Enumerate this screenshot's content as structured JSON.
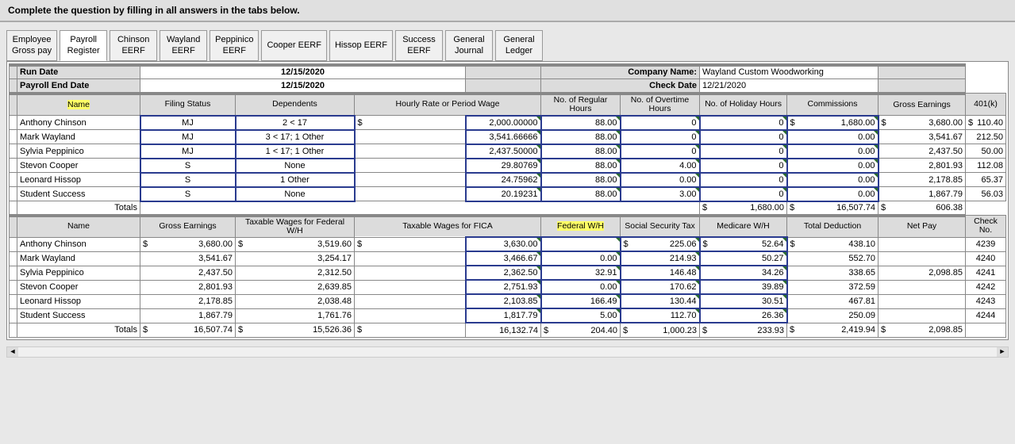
{
  "instruction": "Complete the question by filling in all answers in the tabs below.",
  "tabs": [
    {
      "label": "Employee\nGross pay",
      "active": false
    },
    {
      "label": "Payroll\nRegister",
      "active": true
    },
    {
      "label": "Chinson\nEERF",
      "active": false
    },
    {
      "label": "Wayland\nEERF",
      "active": false
    },
    {
      "label": "Peppinico\nEERF",
      "active": false
    },
    {
      "label": "Cooper EERF",
      "active": false
    },
    {
      "label": "Hissop EERF",
      "active": false
    },
    {
      "label": "Success\nEERF",
      "active": false
    },
    {
      "label": "General\nJournal",
      "active": false
    },
    {
      "label": "General\nLedger",
      "active": false
    }
  ],
  "meta": {
    "run_date_label": "Run Date",
    "run_date": "12/15/2020",
    "payroll_end_label": "Payroll End Date",
    "payroll_end": "12/15/2020",
    "company_label": "Company Name:",
    "company": "Wayland Custom Woodworking",
    "check_date_label": "Check Date",
    "check_date": "12/21/2020"
  },
  "table1": {
    "headers": [
      "Name",
      "Filing Status",
      "Dependents",
      "Hourly Rate or Period Wage",
      "No. of Regular Hours",
      "No. of Overtime Hours",
      "No. of Holiday Hours",
      "Commissions",
      "Gross Earnings",
      "401(k)"
    ],
    "rows": [
      {
        "name": "Anthony Chinson",
        "filing": "MJ",
        "dep": "2 < 17",
        "wage_sym": "$",
        "wage": "2,000.00000",
        "reg": "88.00",
        "ot": "0",
        "hol": "0",
        "comm_sym": "$",
        "comm": "1,680.00",
        "ge_sym": "$",
        "ge": "3,680.00",
        "k_sym": "$",
        "k": "110.40"
      },
      {
        "name": "Mark Wayland",
        "filing": "MJ",
        "dep": "3 < 17; 1 Other",
        "wage_sym": "",
        "wage": "3,541.66666",
        "reg": "88.00",
        "ot": "0",
        "hol": "0",
        "comm_sym": "",
        "comm": "0.00",
        "ge_sym": "",
        "ge": "3,541.67",
        "k_sym": "",
        "k": "212.50"
      },
      {
        "name": "Sylvia Peppinico",
        "filing": "MJ",
        "dep": "1 < 17; 1 Other",
        "wage_sym": "",
        "wage": "2,437.50000",
        "reg": "88.00",
        "ot": "0",
        "hol": "0",
        "comm_sym": "",
        "comm": "0.00",
        "ge_sym": "",
        "ge": "2,437.50",
        "k_sym": "",
        "k": "50.00"
      },
      {
        "name": "Stevon Cooper",
        "filing": "S",
        "dep": "None",
        "wage_sym": "",
        "wage": "29.80769",
        "reg": "88.00",
        "ot": "4.00",
        "hol": "0",
        "comm_sym": "",
        "comm": "0.00",
        "ge_sym": "",
        "ge": "2,801.93",
        "k_sym": "",
        "k": "112.08"
      },
      {
        "name": "Leonard Hissop",
        "filing": "S",
        "dep": "1 Other",
        "wage_sym": "",
        "wage": "24.75962",
        "reg": "88.00",
        "ot": "0.00",
        "hol": "0",
        "comm_sym": "",
        "comm": "0.00",
        "ge_sym": "",
        "ge": "2,178.85",
        "k_sym": "",
        "k": "65.37"
      },
      {
        "name": "Student Success",
        "filing": "S",
        "dep": "None",
        "wage_sym": "",
        "wage": "20.19231",
        "reg": "88.00",
        "ot": "3.00",
        "hol": "0",
        "comm_sym": "",
        "comm": "0.00",
        "ge_sym": "",
        "ge": "1,867.79",
        "k_sym": "",
        "k": "56.03"
      }
    ],
    "totals_label": "Totals",
    "totals": {
      "comm_sym": "$",
      "comm": "1,680.00",
      "ge_sym": "$",
      "ge": "16,507.74",
      "k_sym": "$",
      "k": "606.38"
    }
  },
  "table2": {
    "headers": [
      "Name",
      "Gross Earnings",
      "Taxable Wages for Federal W/H",
      "Taxable Wages for FICA",
      "Federal W/H",
      "Social Security Tax",
      "Medicare W/H",
      "Total Deduction",
      "Net Pay",
      "Check No."
    ],
    "rows": [
      {
        "name": "Anthony Chinson",
        "ge_sym": "$",
        "ge": "3,680.00",
        "tw_sym": "$",
        "tw": "3,519.60",
        "fica_sym": "$",
        "fica": "3,630.00",
        "fwh": "",
        "ss_sym": "$",
        "ss": "225.06",
        "med_sym": "$",
        "med": "52.64",
        "td_sym": "$",
        "td": "438.10",
        "np": "",
        "chk": "4239"
      },
      {
        "name": "Mark Wayland",
        "ge_sym": "",
        "ge": "3,541.67",
        "tw_sym": "",
        "tw": "3,254.17",
        "fica_sym": "",
        "fica": "3,466.67",
        "fwh": "0.00",
        "ss_sym": "",
        "ss": "214.93",
        "med_sym": "",
        "med": "50.27",
        "td_sym": "",
        "td": "552.70",
        "np": "",
        "chk": "4240"
      },
      {
        "name": "Sylvia Peppinico",
        "ge_sym": "",
        "ge": "2,437.50",
        "tw_sym": "",
        "tw": "2,312.50",
        "fica_sym": "",
        "fica": "2,362.50",
        "fwh": "32.91",
        "ss_sym": "",
        "ss": "146.48",
        "med_sym": "",
        "med": "34.26",
        "td_sym": "",
        "td": "338.65",
        "np": "2,098.85",
        "chk": "4241"
      },
      {
        "name": "Stevon Cooper",
        "ge_sym": "",
        "ge": "2,801.93",
        "tw_sym": "",
        "tw": "2,639.85",
        "fica_sym": "",
        "fica": "2,751.93",
        "fwh": "0.00",
        "ss_sym": "",
        "ss": "170.62",
        "med_sym": "",
        "med": "39.89",
        "td_sym": "",
        "td": "372.59",
        "np": "",
        "chk": "4242"
      },
      {
        "name": "Leonard Hissop",
        "ge_sym": "",
        "ge": "2,178.85",
        "tw_sym": "",
        "tw": "2,038.48",
        "fica_sym": "",
        "fica": "2,103.85",
        "fwh": "166.49",
        "ss_sym": "",
        "ss": "130.44",
        "med_sym": "",
        "med": "30.51",
        "td_sym": "",
        "td": "467.81",
        "np": "",
        "chk": "4243"
      },
      {
        "name": "Student Success",
        "ge_sym": "",
        "ge": "1,867.79",
        "tw_sym": "",
        "tw": "1,761.76",
        "fica_sym": "",
        "fica": "1,817.79",
        "fwh": "5.00",
        "ss_sym": "",
        "ss": "112.70",
        "med_sym": "",
        "med": "26.36",
        "td_sym": "",
        "td": "250.09",
        "np": "",
        "chk": "4244"
      }
    ],
    "totals_label": "Totals",
    "totals": {
      "ge_sym": "$",
      "ge": "16,507.74",
      "tw_sym": "$",
      "tw": "15,526.36",
      "fica_sym": "$",
      "fica": "16,132.74",
      "fwh_sym": "$",
      "fwh": "204.40",
      "ss_sym": "$",
      "ss": "1,000.23",
      "med_sym": "$",
      "med": "233.93",
      "td_sym": "$",
      "td": "2,419.94",
      "np_sym": "$",
      "np": "2,098.85"
    }
  },
  "colors": {
    "highlight": "#ffff66",
    "header_bg": "#dcdcdc",
    "input_border": "#2a3b8f",
    "page_bg": "#e8e8e8"
  }
}
